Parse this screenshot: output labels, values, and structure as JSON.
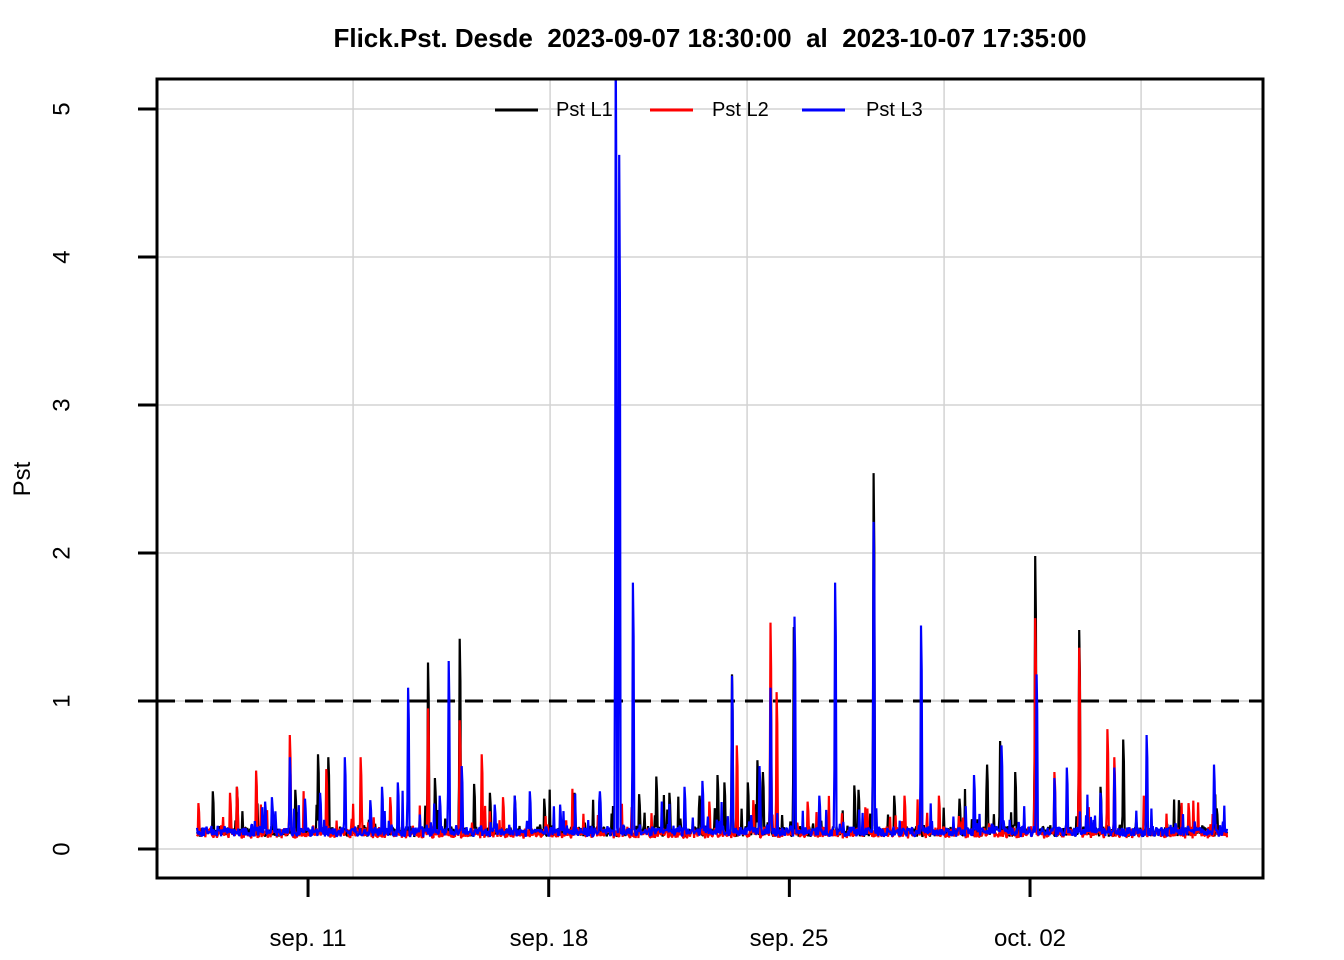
{
  "chart_data": {
    "type": "line",
    "title": "Flick.Pst. Desde  2023-09-07 18:30:00  al  2023-10-07 17:35:00",
    "ylabel": "Pst",
    "y_ticks": [
      0,
      1,
      2,
      3,
      4,
      5
    ],
    "y_range_drawn": [
      -0.2,
      5.2
    ],
    "x_ticks": [
      {
        "label": "sep. 11",
        "day": 3.23
      },
      {
        "label": "sep. 18",
        "day": 10.23
      },
      {
        "label": "sep. 25",
        "day": 17.23
      },
      {
        "label": "oct. 02",
        "day": 24.23
      }
    ],
    "x_range_days": [
      0,
      29.96
    ],
    "sample_step_days": 0.02,
    "grid": {
      "color": "#D3D3D3",
      "vertical_days": [
        4.54,
        10.27,
        16.0,
        21.73,
        27.46
      ],
      "horizontal_values": [
        0,
        1,
        2,
        3,
        4,
        5
      ]
    },
    "threshold_line": {
      "value": 1,
      "color": "#000000",
      "style": "dashed"
    },
    "legend": [
      {
        "label": "Pst L1",
        "color": "#000000"
      },
      {
        "label": "Pst L2",
        "color": "#FF0000"
      },
      {
        "label": "Pst L3",
        "color": "#0000FF"
      }
    ],
    "series": [
      {
        "name": "Pst L1",
        "color": "#000000",
        "baseline": {
          "min": 0.08,
          "typical": 0.15,
          "bump_max": 0.45
        },
        "spikes": [
          [
            0.46,
            0.39
          ],
          [
            1.16,
            0.42
          ],
          [
            2.85,
            0.4
          ],
          [
            3.52,
            0.64
          ],
          [
            3.81,
            0.62
          ],
          [
            6.71,
            1.26
          ],
          [
            6.91,
            0.48
          ],
          [
            7.64,
            1.42
          ],
          [
            8.05,
            0.44
          ],
          [
            8.51,
            0.38
          ],
          [
            9.24,
            0.36
          ],
          [
            10.11,
            0.34
          ],
          [
            10.98,
            0.38
          ],
          [
            12.86,
            0.37
          ],
          [
            13.35,
            0.49
          ],
          [
            13.74,
            0.38
          ],
          [
            14.61,
            0.36
          ],
          [
            15.14,
            0.5
          ],
          [
            15.34,
            0.45
          ],
          [
            15.56,
            1.18
          ],
          [
            16.01,
            0.45
          ],
          [
            16.3,
            0.6
          ],
          [
            16.45,
            0.52
          ],
          [
            16.68,
            1.02
          ],
          [
            17.35,
            1.5
          ],
          [
            19.12,
            0.43
          ],
          [
            19.23,
            0.4
          ],
          [
            19.67,
            2.54
          ],
          [
            20.28,
            0.36
          ],
          [
            22.17,
            0.34
          ],
          [
            22.98,
            0.57
          ],
          [
            23.36,
            0.73
          ],
          [
            23.79,
            0.52
          ],
          [
            24.38,
            1.98
          ],
          [
            25.65,
            1.48
          ],
          [
            26.27,
            0.42
          ],
          [
            26.93,
            0.74
          ],
          [
            28.55,
            0.33
          ]
        ]
      },
      {
        "name": "Pst L2",
        "color": "#FF0000",
        "baseline": {
          "min": 0.07,
          "typical": 0.14,
          "bump_max": 0.42
        },
        "spikes": [
          [
            0.03,
            0.31
          ],
          [
            0.96,
            0.38
          ],
          [
            1.16,
            0.42
          ],
          [
            1.71,
            0.53
          ],
          [
            2.7,
            0.77
          ],
          [
            3.75,
            0.54
          ],
          [
            4.77,
            0.62
          ],
          [
            5.61,
            0.35
          ],
          [
            6.71,
            0.95
          ],
          [
            7.64,
            0.87
          ],
          [
            8.28,
            0.64
          ],
          [
            8.89,
            0.35
          ],
          [
            14.9,
            0.32
          ],
          [
            15.69,
            0.7
          ],
          [
            16.18,
            0.33
          ],
          [
            16.68,
            1.53
          ],
          [
            16.85,
            1.06
          ],
          [
            17.75,
            0.32
          ],
          [
            20.57,
            0.36
          ],
          [
            21.06,
            0.59
          ],
          [
            21.58,
            0.36
          ],
          [
            24.38,
            1.56
          ],
          [
            24.93,
            0.52
          ],
          [
            25.65,
            1.36
          ],
          [
            26.47,
            0.81
          ],
          [
            26.67,
            0.62
          ],
          [
            27.54,
            0.36
          ],
          [
            28.84,
            0.31
          ]
        ]
      },
      {
        "name": "Pst L3",
        "color": "#0000FF",
        "baseline": {
          "min": 0.08,
          "typical": 0.15,
          "bump_max": 0.42
        },
        "spikes": [
          [
            1.98,
            0.32
          ],
          [
            2.18,
            0.35
          ],
          [
            2.7,
            0.62
          ],
          [
            3.14,
            0.34
          ],
          [
            3.57,
            0.38
          ],
          [
            4.3,
            0.62
          ],
          [
            5.03,
            0.33
          ],
          [
            5.38,
            0.42
          ],
          [
            5.84,
            0.45
          ],
          [
            6.13,
            1.09
          ],
          [
            7.06,
            0.36
          ],
          [
            7.32,
            1.27
          ],
          [
            7.7,
            0.56
          ],
          [
            8.66,
            0.3
          ],
          [
            9.24,
            0.36
          ],
          [
            9.67,
            0.39
          ],
          [
            10.55,
            0.3
          ],
          [
            11.71,
            0.39
          ],
          [
            12.18,
            5.45
          ],
          [
            12.27,
            4.69
          ],
          [
            12.68,
            1.8
          ],
          [
            14.18,
            0.42
          ],
          [
            14.7,
            0.46
          ],
          [
            15.56,
            1.17
          ],
          [
            16.36,
            0.56
          ],
          [
            16.68,
            1.09
          ],
          [
            17.37,
            1.57
          ],
          [
            18.1,
            0.36
          ],
          [
            18.56,
            1.8
          ],
          [
            19.67,
            2.21
          ],
          [
            21.06,
            1.51
          ],
          [
            22.6,
            0.5
          ],
          [
            23.39,
            0.7
          ],
          [
            24.41,
            1.18
          ],
          [
            24.93,
            0.48
          ],
          [
            25.3,
            0.55
          ],
          [
            26.27,
            0.38
          ],
          [
            26.67,
            0.55
          ],
          [
            27.62,
            0.77
          ],
          [
            29.58,
            0.57
          ]
        ]
      }
    ]
  }
}
